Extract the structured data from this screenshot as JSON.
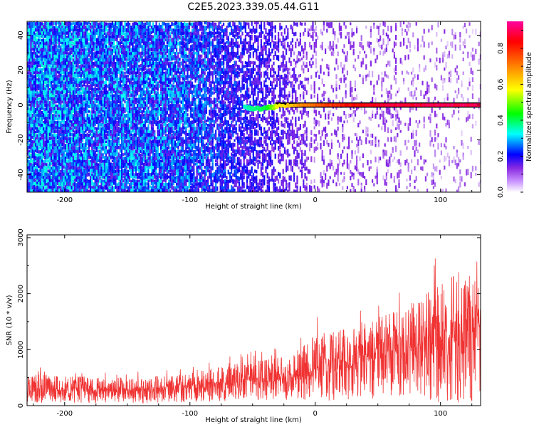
{
  "title": "C2E5.2023.339.05.44.G11",
  "chart_data": [
    {
      "type": "heatmap",
      "xlabel": "Height of straight line (km)",
      "ylabel": "Frequency (Hz)",
      "xlim": [
        -230,
        132
      ],
      "ylim": [
        -50,
        48
      ],
      "xticks": [
        -200,
        -100,
        0,
        100
      ],
      "xtick_labels": [
        "-200",
        "-100",
        "0",
        "100"
      ],
      "yticks": [
        -40,
        -20,
        0,
        20,
        40
      ],
      "ytick_labels": [
        "-40",
        "-20",
        "0",
        "20",
        "40"
      ],
      "colorbar": {
        "label": "Normalized spectral amplitude",
        "range": [
          0,
          0.95
        ],
        "ticks": [
          0.0,
          0.2,
          0.4,
          0.6,
          0.8
        ],
        "tick_labels": [
          "0.0",
          "0.2",
          "0.4",
          "0.6",
          "0.8"
        ],
        "colormap": [
          "#ffffff",
          "#8a2be2",
          "#0000ff",
          "#00ffff",
          "#00ff00",
          "#ffff00",
          "#ff8000",
          "#ff0000",
          "#ff00a0"
        ]
      },
      "signal": {
        "description_points": [
          {
            "height_km": -55,
            "freq_hz": -1.5,
            "amplitude": 0.25
          },
          {
            "height_km": -40,
            "freq_hz": -2,
            "amplitude": 0.3
          },
          {
            "height_km": -30,
            "freq_hz": -0.5,
            "amplitude": 0.45
          },
          {
            "height_km": -10,
            "freq_hz": 0,
            "amplitude": 0.6
          },
          {
            "height_km": 20,
            "freq_hz": 0,
            "amplitude": 0.75
          },
          {
            "height_km": 60,
            "freq_hz": 0,
            "amplitude": 0.85
          },
          {
            "height_km": 130,
            "freq_hz": 0,
            "amplitude": 0.9
          }
        ]
      },
      "noise_level": [
        {
          "height_km": -230,
          "amplitude": 0.2
        },
        {
          "height_km": -100,
          "amplitude": 0.17
        },
        {
          "height_km": -40,
          "amplitude": 0.1
        },
        {
          "height_km": 0,
          "amplitude": 0.04
        },
        {
          "height_km": 130,
          "amplitude": 0.02
        }
      ]
    },
    {
      "type": "line",
      "xlabel": "Height of straight line (km)",
      "ylabel": "SNR (10 * v/v)",
      "xlim": [
        -230,
        132
      ],
      "ylim": [
        0,
        3050
      ],
      "xticks": [
        -200,
        -100,
        0,
        100
      ],
      "xtick_labels": [
        "-200",
        "-100",
        "0",
        "100"
      ],
      "yticks": [
        0,
        1000,
        2000,
        3000
      ],
      "ytick_labels": [
        "0",
        "1000",
        "2000",
        "3000"
      ],
      "line_color": "#f03232",
      "envelope": {
        "x": [
          -230,
          -200,
          -150,
          -100,
          -50,
          -20,
          0,
          20,
          50,
          80,
          100,
          120,
          132
        ],
        "mean": [
          350,
          330,
          320,
          380,
          500,
          600,
          700,
          850,
          1050,
          1200,
          1350,
          1550,
          1650
        ],
        "max": [
          700,
          650,
          620,
          700,
          1000,
          1100,
          1600,
          1650,
          1950,
          2100,
          2850,
          3000,
          2500
        ],
        "min": [
          50,
          40,
          40,
          60,
          100,
          100,
          80,
          100,
          100,
          150,
          50,
          60,
          100
        ]
      }
    }
  ]
}
